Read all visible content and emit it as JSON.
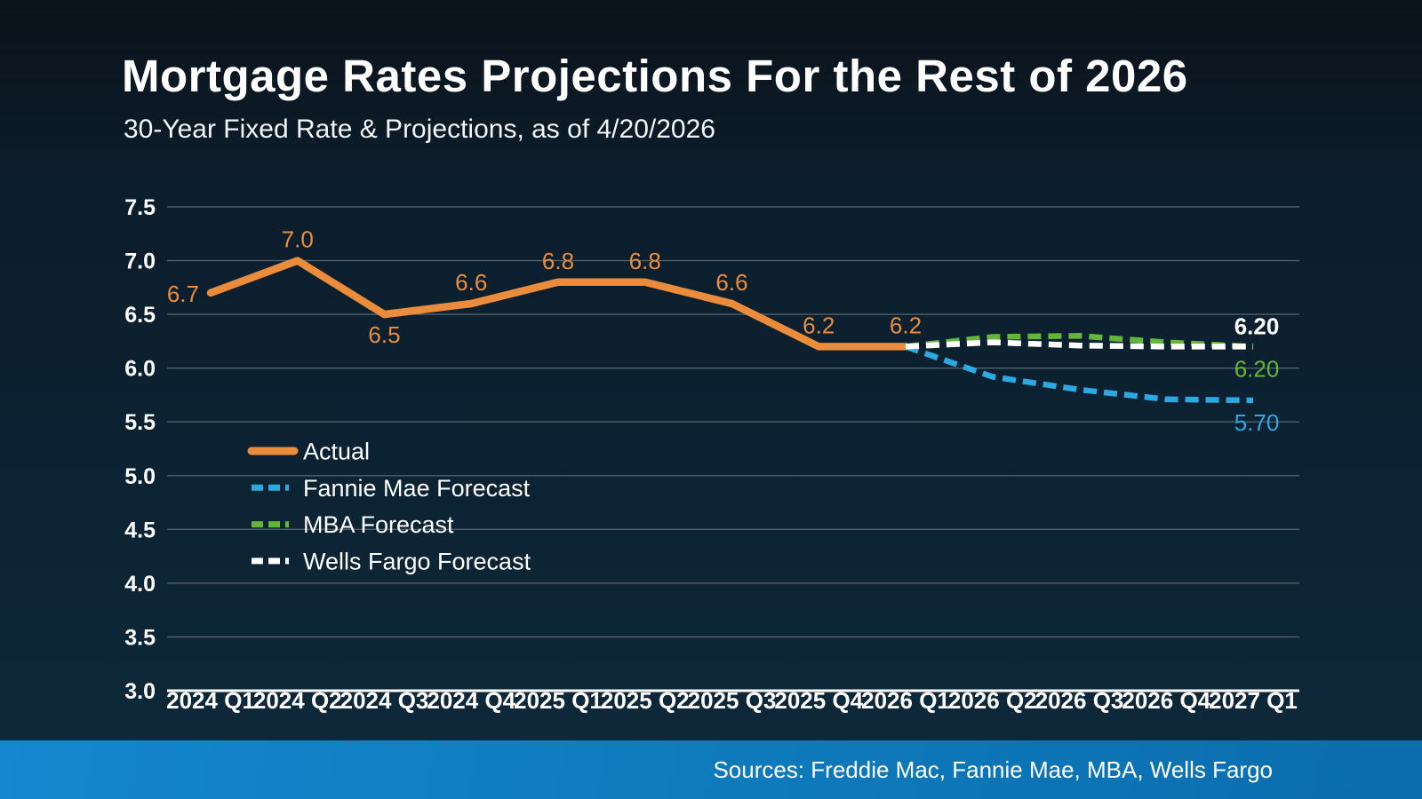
{
  "header": {
    "title": "Mortgage Rates Projections For the Rest of 2026",
    "subtitle": "30-Year Fixed Rate & Projections, as of 4/20/2026"
  },
  "footer": {
    "sources": "Sources: Freddie Mac, Fannie Mae, MBA, Wells Fargo"
  },
  "colors": {
    "background_top": "#0b121a",
    "background_bottom": "#0e2a3d",
    "footer_blue": "#0f7cbe",
    "gridline": "#76828c",
    "axis_line": "#ffffff",
    "text": "#ffffff",
    "actual_orange": "#EA8C3C",
    "fannie_blue": "#2BA9E1",
    "mba_green": "#63B637",
    "wells_white": "#FFFFFF"
  },
  "chart_data": {
    "type": "line",
    "title": "30-Year Fixed Rate & Projections, as of 4/20/2026",
    "categories": [
      "2024 Q1",
      "2024 Q2",
      "2024 Q3",
      "2024 Q4",
      "2025 Q1",
      "2025 Q2",
      "2025 Q3",
      "2025 Q4",
      "2026 Q1",
      "2026 Q2",
      "2026 Q3",
      "2026 Q4",
      "2027 Q1"
    ],
    "ylim": [
      3.0,
      7.5
    ],
    "ytick_step": 0.5,
    "ytick_labels": [
      "3.0",
      "3.5",
      "4.0",
      "4.5",
      "5.0",
      "5.5",
      "6.0",
      "6.5",
      "7.0",
      "7.5"
    ],
    "grid": true,
    "legend_position": "middle-left",
    "series": [
      {
        "name": "Actual",
        "color": "#EA8C3C",
        "dash": false,
        "values": [
          6.7,
          7.0,
          6.5,
          6.6,
          6.8,
          6.8,
          6.6,
          6.2,
          6.2,
          null,
          null,
          null,
          null
        ],
        "point_labels": [
          "6.7",
          "7.0",
          "6.5",
          "6.6",
          "6.8",
          "6.8",
          "6.6",
          "6.2",
          "6.2"
        ],
        "label_pos": [
          "left",
          "above",
          "below",
          "above",
          "above",
          "above",
          "above",
          "above",
          "above"
        ]
      },
      {
        "name": "Fannie Mae Forecast",
        "color": "#2BA9E1",
        "dash": true,
        "values": [
          null,
          null,
          null,
          null,
          null,
          null,
          null,
          null,
          6.2,
          5.92,
          5.8,
          5.71,
          5.7
        ],
        "end_label": "5.70",
        "end_label_pos": "below",
        "end_label_bold": false
      },
      {
        "name": "MBA Forecast",
        "color": "#63B637",
        "dash": true,
        "values": [
          null,
          null,
          null,
          null,
          null,
          null,
          null,
          null,
          6.2,
          6.29,
          6.3,
          6.24,
          6.2
        ],
        "end_label": "6.20",
        "end_label_pos": "below",
        "end_label_bold": false
      },
      {
        "name": "Wells Fargo Forecast",
        "color": "#FFFFFF",
        "dash": true,
        "values": [
          null,
          null,
          null,
          null,
          null,
          null,
          null,
          null,
          6.2,
          6.24,
          6.21,
          6.2,
          6.2
        ],
        "end_label": "6.20",
        "end_label_pos": "above",
        "end_label_bold": true
      }
    ]
  }
}
